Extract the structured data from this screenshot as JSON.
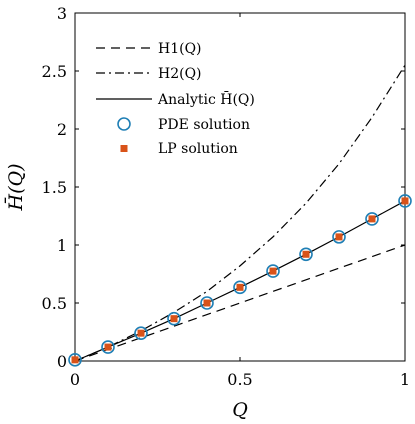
{
  "chart_data": {
    "type": "line",
    "xlabel": "Q",
    "ylabel": "H̄(Q)",
    "xlim": [
      0,
      1
    ],
    "ylim": [
      0,
      3
    ],
    "xticks": [
      0,
      0.5,
      1
    ],
    "yticks": [
      0,
      0.5,
      1,
      1.5,
      2,
      2.5,
      3
    ],
    "xtick_labels": [
      "0",
      "0.5",
      "1"
    ],
    "ytick_labels": [
      "0",
      "0.5",
      "1",
      "1.5",
      "2",
      "2.5",
      "3"
    ],
    "grid": false,
    "legend_position": "top-left",
    "series": [
      {
        "name": "H1(Q)",
        "style": "dashed",
        "color": "#000000",
        "x": [
          0,
          0.1,
          0.2,
          0.3,
          0.4,
          0.5,
          0.6,
          0.7,
          0.8,
          0.9,
          1.0
        ],
        "y": [
          0,
          0.1,
          0.2,
          0.3,
          0.4,
          0.5,
          0.6,
          0.7,
          0.8,
          0.9,
          1.0
        ]
      },
      {
        "name": "H2(Q)",
        "style": "dashdot",
        "color": "#000000",
        "x": [
          0,
          0.1,
          0.2,
          0.3,
          0.4,
          0.5,
          0.6,
          0.7,
          0.8,
          0.9,
          1.0
        ],
        "y": [
          0,
          0.12,
          0.26,
          0.42,
          0.6,
          0.82,
          1.07,
          1.36,
          1.7,
          2.1,
          2.55
        ]
      },
      {
        "name": "Analytic H̄(Q)",
        "style": "solid",
        "color": "#000000",
        "x": [
          0,
          0.1,
          0.2,
          0.3,
          0.4,
          0.5,
          0.6,
          0.7,
          0.8,
          0.9,
          1.0
        ],
        "y": [
          0,
          0.12,
          0.24,
          0.365,
          0.5,
          0.635,
          0.775,
          0.92,
          1.07,
          1.225,
          1.38
        ]
      },
      {
        "name": "PDE solution",
        "style": "circle",
        "color": "#1f7fb5",
        "x": [
          0,
          0.1,
          0.2,
          0.3,
          0.4,
          0.5,
          0.6,
          0.7,
          0.8,
          0.9,
          1.0
        ],
        "y": [
          0.01,
          0.12,
          0.24,
          0.365,
          0.5,
          0.635,
          0.775,
          0.92,
          1.07,
          1.225,
          1.38
        ]
      },
      {
        "name": "LP solution",
        "style": "square",
        "color": "#d95319",
        "x": [
          0,
          0.1,
          0.2,
          0.3,
          0.4,
          0.5,
          0.6,
          0.7,
          0.8,
          0.9,
          1.0
        ],
        "y": [
          0.01,
          0.12,
          0.24,
          0.365,
          0.5,
          0.635,
          0.775,
          0.92,
          1.07,
          1.225,
          1.38
        ]
      }
    ]
  },
  "legend": {
    "h1": "H1(Q)",
    "h2": "H2(Q)",
    "analytic": "Analytic H̄(Q)",
    "pde": "PDE solution",
    "lp": "LP solution"
  }
}
